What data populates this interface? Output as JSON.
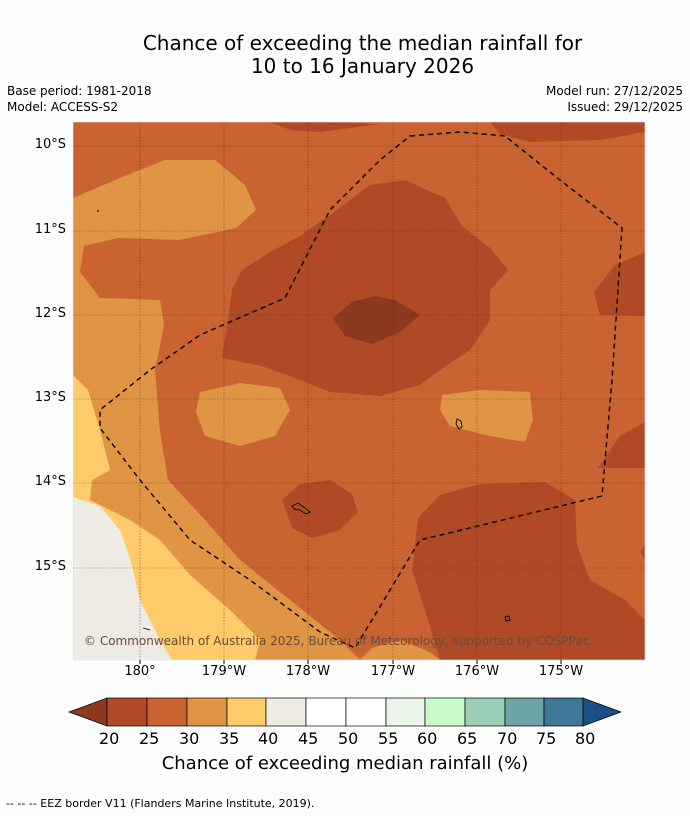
{
  "title_line1": "Chance of exceeding the median rainfall for",
  "title_line2": "10 to 16 January 2026",
  "base_period": "Base period: 1981-2018",
  "model": "Model: ACCESS-S2",
  "model_run": "Model run: 27/12/2025",
  "issued": "Issued: 29/12/2025",
  "map": {
    "lat_labels": [
      "10°S",
      "11°S",
      "12°S",
      "13°S",
      "14°S",
      "15°S"
    ],
    "lon_labels": [
      "180°",
      "179°W",
      "178°W",
      "177°W",
      "176°W",
      "175°W"
    ],
    "copyright": "© Commonwealth of Australia 2025, Bureau of Meteorology, supported by COSPPac"
  },
  "colorbar": {
    "ticks": [
      "20",
      "25",
      "30",
      "35",
      "40",
      "45",
      "50",
      "55",
      "60",
      "65",
      "70",
      "75",
      "80"
    ],
    "colors": [
      "#8b3a1f",
      "#b04a26",
      "#c96332",
      "#e09545",
      "#fecb6a",
      "#eeeae4",
      "#ffffff",
      "#ffffff",
      "#ebf5ea",
      "#c8fcc8",
      "#9dcfb8",
      "#6da4a6",
      "#3f7797",
      "#1c4f84"
    ],
    "label": "Chance of exceeding median rainfall (%)"
  },
  "footer": "-- -- -- EEZ border V11 (Flanders Marine Institute, 2019)."
}
